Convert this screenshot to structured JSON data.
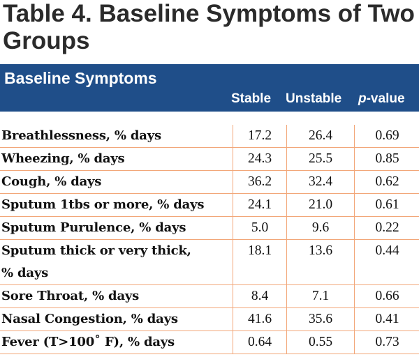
{
  "title": "Table 4. Baseline Symptoms of Two Groups",
  "header": {
    "title": "Baseline Symptoms",
    "columns": [
      "Stable",
      "Unstable",
      "p",
      "-value"
    ]
  },
  "colors": {
    "header_bg": "#1f4e89",
    "header_text": "#ffffff",
    "rule": "#f2a779",
    "title_text": "#2b2b2b"
  },
  "rows": [
    {
      "label": "Breathlessness, % days",
      "stable": "17.2",
      "unstable": "26.4",
      "p": "0.69"
    },
    {
      "label": "Wheezing, % days",
      "stable": "24.3",
      "unstable": "25.5",
      "p": "0.85"
    },
    {
      "label": "Cough, % days",
      "stable": "36.2",
      "unstable": "32.4",
      "p": "0.62"
    },
    {
      "label": "Sputum 1tbs or more, % days",
      "stable": "24.1",
      "unstable": "21.0",
      "p": "0.61"
    },
    {
      "label": "Sputum Purulence, % days",
      "stable": "5.0",
      "unstable": "9.6",
      "p": "0.22"
    },
    {
      "label": "Sputum thick or very thick,",
      "label2": "% days",
      "stable": "18.1",
      "unstable": "13.6",
      "p": "0.44"
    },
    {
      "label": "Sore Throat, % days",
      "stable": "8.4",
      "unstable": "7.1",
      "p": "0.66"
    },
    {
      "label": "Nasal Congestion, % days",
      "stable": "41.6",
      "unstable": "35.6",
      "p": "0.41"
    },
    {
      "label": "Fever (T>100˚ F), % days",
      "stable": "0.64",
      "unstable": "0.55",
      "p": "0.73"
    }
  ]
}
